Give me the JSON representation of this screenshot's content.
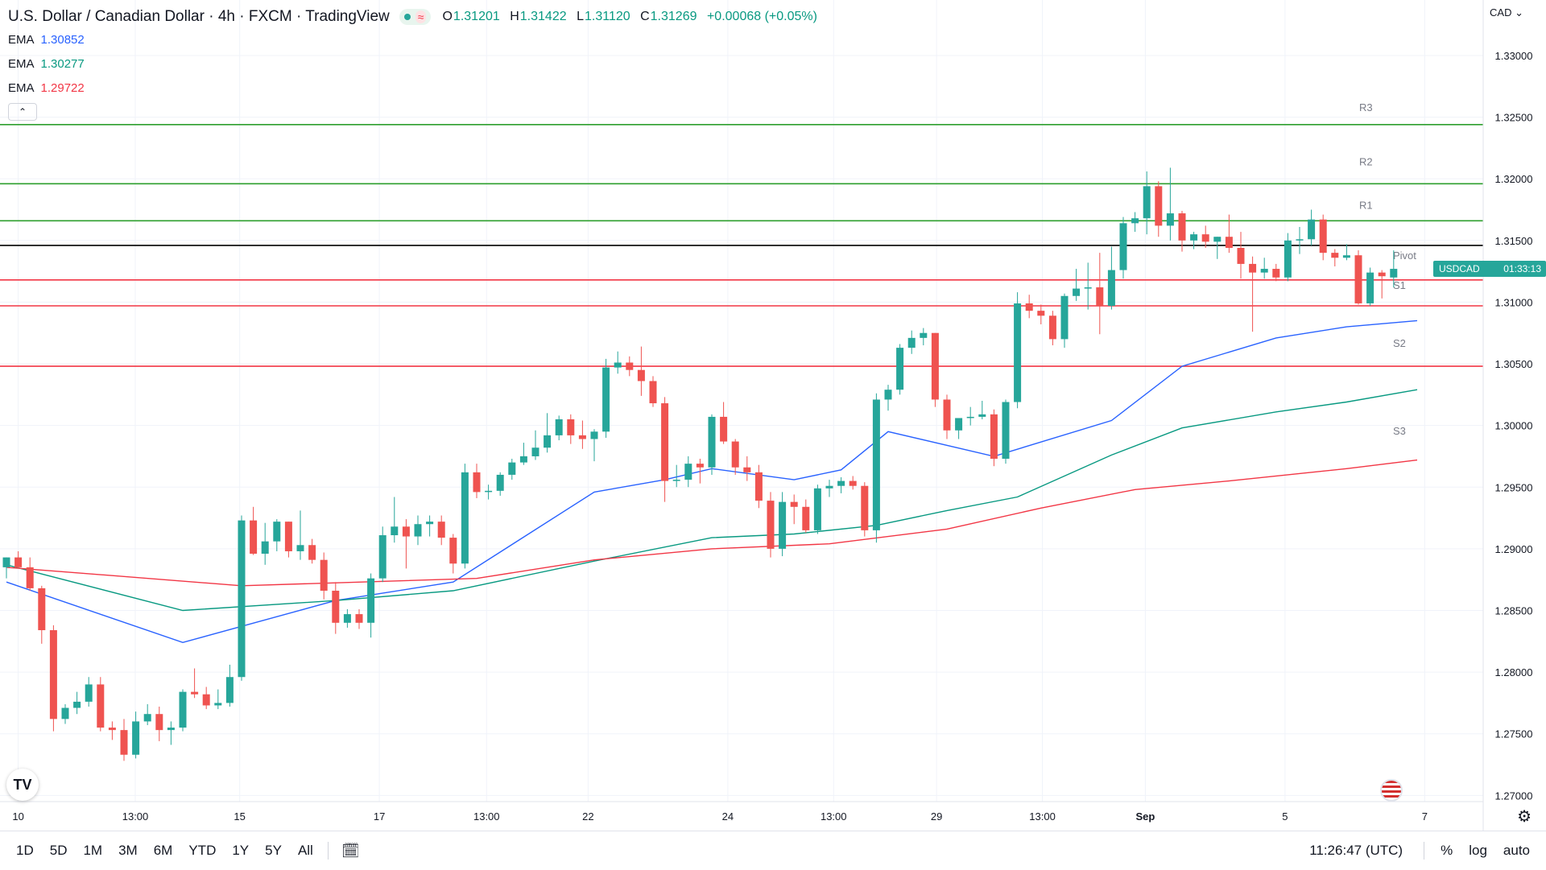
{
  "header": {
    "symbol_title": "U.S. Dollar / Canadian Dollar · 4h · FXCM · TradingView",
    "ohlc": {
      "o_label": "O",
      "o": "1.31201",
      "h_label": "H",
      "h": "1.31422",
      "l_label": "L",
      "l": "1.31120",
      "c_label": "C",
      "c": "1.31269",
      "change": "+0.00068 (+0.05%)"
    }
  },
  "indicators": [
    {
      "label": "EMA",
      "value": "1.30852",
      "color": "#2962ff"
    },
    {
      "label": "EMA",
      "value": "1.30277",
      "color": "#089981"
    },
    {
      "label": "EMA",
      "value": "1.29722",
      "color": "#f23645"
    }
  ],
  "currency_menu": "CAD",
  "collapse_icon": "chevron-up-icon",
  "price_tag": {
    "symbol": "USDCAD",
    "countdown": "01:33:13",
    "color": "#26a69a"
  },
  "bottom_toolbar": {
    "ranges": [
      "1D",
      "5D",
      "1M",
      "3M",
      "6M",
      "YTD",
      "1Y",
      "5Y",
      "All"
    ],
    "clock": "11:26:47 (UTC)",
    "percent": "%",
    "log": "log",
    "auto": "auto"
  },
  "colors": {
    "up": "#26a69a",
    "down": "#ef5350",
    "resistance": "#2e9f2e",
    "support": "#f23645",
    "pivot": "#000000"
  },
  "chart_data": {
    "type": "candlestick",
    "title": "U.S. Dollar / Canadian Dollar · 4h · FXCM · TradingView",
    "ylim": [
      1.2695,
      1.3345
    ],
    "y_ticks": [
      "1.33000",
      "1.32500",
      "1.32000",
      "1.31500",
      "1.31000",
      "1.30500",
      "1.30000",
      "1.29500",
      "1.29000",
      "1.28500",
      "1.28000",
      "1.27500",
      "1.27000"
    ],
    "x_ticks": [
      {
        "label": "10",
        "pos": 0
      },
      {
        "label": "13:00",
        "pos": 8.3
      },
      {
        "label": "15",
        "pos": 15.7
      },
      {
        "label": "17",
        "pos": 25.6
      },
      {
        "label": "13:00",
        "pos": 33.2
      },
      {
        "label": "22",
        "pos": 40.4
      },
      {
        "label": "24",
        "pos": 50.3
      },
      {
        "label": "13:00",
        "pos": 57.8
      },
      {
        "label": "29",
        "pos": 65.1
      },
      {
        "label": "13:00",
        "pos": 72.6
      },
      {
        "label": "Sep",
        "pos": 79.9
      },
      {
        "label": "5",
        "pos": 89.8
      },
      {
        "label": "7",
        "pos": 99.7
      }
    ],
    "levels": [
      {
        "name": "R3",
        "value": 1.3244,
        "kind": "resistance"
      },
      {
        "name": "R2",
        "value": 1.3196,
        "kind": "resistance"
      },
      {
        "name": "R1",
        "value": 1.3166,
        "kind": "resistance"
      },
      {
        "name": "Pivot",
        "value": 1.3146,
        "kind": "pivot"
      },
      {
        "name": "S1",
        "value": 1.3118,
        "kind": "support"
      },
      {
        "name": "S2",
        "value": 1.3097,
        "kind": "support"
      },
      {
        "name": "S3",
        "value": 1.3048,
        "kind": "support"
      }
    ],
    "candles": [
      [
        1.2885,
        1.2893,
        1.2876,
        1.2893
      ],
      [
        1.2893,
        1.2898,
        1.2884,
        1.2885
      ],
      [
        1.2885,
        1.2893,
        1.2866,
        1.2868
      ],
      [
        1.2868,
        1.287,
        1.2823,
        1.2834
      ],
      [
        1.2834,
        1.2838,
        1.2752,
        1.2762
      ],
      [
        1.2762,
        1.2774,
        1.2758,
        1.2771
      ],
      [
        1.2771,
        1.2784,
        1.2766,
        1.2776
      ],
      [
        1.2776,
        1.2796,
        1.2772,
        1.279
      ],
      [
        1.279,
        1.2796,
        1.2752,
        1.2755
      ],
      [
        1.2755,
        1.276,
        1.2745,
        1.2753
      ],
      [
        1.2753,
        1.2762,
        1.2728,
        1.2733
      ],
      [
        1.2733,
        1.2768,
        1.273,
        1.276
      ],
      [
        1.276,
        1.2774,
        1.2757,
        1.2766
      ],
      [
        1.2766,
        1.2772,
        1.2744,
        1.2753
      ],
      [
        1.2753,
        1.276,
        1.2741,
        1.2755
      ],
      [
        1.2755,
        1.2786,
        1.2752,
        1.2784
      ],
      [
        1.2784,
        1.2803,
        1.2779,
        1.2782
      ],
      [
        1.2782,
        1.2788,
        1.277,
        1.2773
      ],
      [
        1.2773,
        1.2786,
        1.277,
        1.2775
      ],
      [
        1.2775,
        1.2806,
        1.2772,
        1.2796
      ],
      [
        1.2796,
        1.2927,
        1.2793,
        1.2923
      ],
      [
        1.2923,
        1.2934,
        1.2895,
        1.2896
      ],
      [
        1.2896,
        1.2921,
        1.2887,
        1.2906
      ],
      [
        1.2906,
        1.2924,
        1.2898,
        1.2922
      ],
      [
        1.2922,
        1.2922,
        1.2893,
        1.2898
      ],
      [
        1.2898,
        1.2931,
        1.2891,
        1.2903
      ],
      [
        1.2903,
        1.2908,
        1.2888,
        1.2891
      ],
      [
        1.2891,
        1.2897,
        1.2859,
        1.2866
      ],
      [
        1.2866,
        1.2873,
        1.2831,
        1.284
      ],
      [
        1.284,
        1.2851,
        1.2836,
        1.2847
      ],
      [
        1.2847,
        1.2851,
        1.2835,
        1.284
      ],
      [
        1.284,
        1.288,
        1.2828,
        1.2876
      ],
      [
        1.2876,
        1.2918,
        1.2873,
        1.2911
      ],
      [
        1.2911,
        1.2942,
        1.2905,
        1.2918
      ],
      [
        1.2918,
        1.2924,
        1.2884,
        1.291
      ],
      [
        1.291,
        1.2927,
        1.2903,
        1.292
      ],
      [
        1.292,
        1.2927,
        1.291,
        1.2922
      ],
      [
        1.2922,
        1.2927,
        1.2903,
        1.2909
      ],
      [
        1.2909,
        1.2912,
        1.288,
        1.2888
      ],
      [
        1.2888,
        1.2969,
        1.2884,
        1.2962
      ],
      [
        1.2962,
        1.2969,
        1.2941,
        1.2946
      ],
      [
        1.2946,
        1.2952,
        1.294,
        1.2947
      ],
      [
        1.2947,
        1.2962,
        1.2943,
        1.296
      ],
      [
        1.296,
        1.2973,
        1.2956,
        1.297
      ],
      [
        1.297,
        1.2986,
        1.2968,
        1.2975
      ],
      [
        1.2975,
        1.2996,
        1.2972,
        1.2982
      ],
      [
        1.2982,
        1.301,
        1.2978,
        1.2992
      ],
      [
        1.2992,
        1.3008,
        1.2988,
        1.3005
      ],
      [
        1.3005,
        1.3009,
        1.2985,
        1.2992
      ],
      [
        1.2992,
        1.3004,
        1.2981,
        1.2989
      ],
      [
        1.2989,
        1.2997,
        1.2971,
        1.2995
      ],
      [
        1.2995,
        1.3054,
        1.299,
        1.3047
      ],
      [
        1.3047,
        1.306,
        1.3042,
        1.3051
      ],
      [
        1.3051,
        1.3056,
        1.304,
        1.3045
      ],
      [
        1.3045,
        1.3064,
        1.3024,
        1.3036
      ],
      [
        1.3036,
        1.304,
        1.3015,
        1.3018
      ],
      [
        1.3018,
        1.3023,
        1.2938,
        1.2955
      ],
      [
        1.2955,
        1.2968,
        1.295,
        1.2956
      ],
      [
        1.2956,
        1.2975,
        1.295,
        1.2969
      ],
      [
        1.2969,
        1.2973,
        1.2953,
        1.2966
      ],
      [
        1.2966,
        1.3009,
        1.296,
        1.3007
      ],
      [
        1.3007,
        1.3019,
        1.2985,
        1.2987
      ],
      [
        1.2987,
        1.2989,
        1.296,
        1.2966
      ],
      [
        1.2966,
        1.2975,
        1.2955,
        1.2962
      ],
      [
        1.2962,
        1.2968,
        1.2933,
        1.2939
      ],
      [
        1.2939,
        1.2946,
        1.2893,
        1.29
      ],
      [
        1.29,
        1.2946,
        1.2894,
        1.2938
      ],
      [
        1.2938,
        1.2944,
        1.292,
        1.2934
      ],
      [
        1.2934,
        1.294,
        1.2913,
        1.2915
      ],
      [
        1.2915,
        1.2952,
        1.2912,
        1.2949
      ],
      [
        1.2949,
        1.2956,
        1.2942,
        1.2951
      ],
      [
        1.2951,
        1.2958,
        1.2945,
        1.2955
      ],
      [
        1.2955,
        1.2959,
        1.2948,
        1.2951
      ],
      [
        1.2951,
        1.2954,
        1.291,
        1.2915
      ],
      [
        1.2915,
        1.3026,
        1.2905,
        1.3021
      ],
      [
        1.3021,
        1.3033,
        1.3012,
        1.3029
      ],
      [
        1.3029,
        1.3066,
        1.3025,
        1.3063
      ],
      [
        1.3063,
        1.3077,
        1.3058,
        1.3071
      ],
      [
        1.3071,
        1.3079,
        1.3065,
        1.3075
      ],
      [
        1.3075,
        1.3075,
        1.3015,
        1.3021
      ],
      [
        1.3021,
        1.3025,
        1.2989,
        1.2996
      ],
      [
        1.2996,
        1.3003,
        1.2989,
        1.3006
      ],
      [
        1.3006,
        1.3015,
        1.3,
        1.3007
      ],
      [
        1.3007,
        1.302,
        1.3005,
        1.3009
      ],
      [
        1.3009,
        1.3013,
        1.2967,
        1.2973
      ],
      [
        1.2973,
        1.3021,
        1.2969,
        1.3019
      ],
      [
        1.3019,
        1.3108,
        1.3014,
        1.3099
      ],
      [
        1.3099,
        1.3106,
        1.3087,
        1.3093
      ],
      [
        1.3093,
        1.3098,
        1.3082,
        1.3089
      ],
      [
        1.3089,
        1.3093,
        1.3065,
        1.307
      ],
      [
        1.307,
        1.3107,
        1.3063,
        1.3105
      ],
      [
        1.3105,
        1.3127,
        1.3101,
        1.3111
      ],
      [
        1.3111,
        1.3132,
        1.3094,
        1.3112
      ],
      [
        1.3112,
        1.314,
        1.3074,
        1.3097
      ],
      [
        1.3097,
        1.3145,
        1.3094,
        1.3126
      ],
      [
        1.3126,
        1.3169,
        1.3119,
        1.3164
      ],
      [
        1.3164,
        1.3173,
        1.3157,
        1.3168
      ],
      [
        1.3168,
        1.3206,
        1.3155,
        1.3194
      ],
      [
        1.3194,
        1.3198,
        1.3153,
        1.3162
      ],
      [
        1.3162,
        1.3209,
        1.315,
        1.3172
      ],
      [
        1.3172,
        1.3174,
        1.3141,
        1.315
      ],
      [
        1.315,
        1.3157,
        1.3143,
        1.3155
      ],
      [
        1.3155,
        1.3162,
        1.3144,
        1.3149
      ],
      [
        1.3149,
        1.3153,
        1.3135,
        1.3153
      ],
      [
        1.3153,
        1.3171,
        1.314,
        1.3144
      ],
      [
        1.3144,
        1.3157,
        1.3119,
        1.3131
      ],
      [
        1.3131,
        1.3137,
        1.3076,
        1.3124
      ],
      [
        1.3124,
        1.3136,
        1.3119,
        1.3127
      ],
      [
        1.3127,
        1.3131,
        1.3117,
        1.312
      ],
      [
        1.312,
        1.3156,
        1.3117,
        1.315
      ],
      [
        1.315,
        1.3161,
        1.3139,
        1.3151
      ],
      [
        1.3151,
        1.3175,
        1.3146,
        1.3167
      ],
      [
        1.3167,
        1.3171,
        1.3134,
        1.314
      ],
      [
        1.314,
        1.3143,
        1.3129,
        1.3136
      ],
      [
        1.3136,
        1.3147,
        1.3134,
        1.3138
      ],
      [
        1.3138,
        1.3142,
        1.3098,
        1.3099
      ],
      [
        1.3099,
        1.3128,
        1.3097,
        1.3124
      ],
      [
        1.3124,
        1.3126,
        1.3103,
        1.3121
      ],
      [
        1.312,
        1.3142,
        1.3112,
        1.3127
      ]
    ],
    "series": [
      {
        "name": "EMA 1.30852",
        "color": "#2962ff",
        "anchors": [
          [
            0,
            1.2873
          ],
          [
            15,
            1.2824
          ],
          [
            28,
            1.2858
          ],
          [
            38,
            1.2873
          ],
          [
            50,
            1.2946
          ],
          [
            56,
            1.2956
          ],
          [
            60,
            1.2965
          ],
          [
            67,
            1.2956
          ],
          [
            71,
            1.2964
          ],
          [
            75,
            1.2995
          ],
          [
            84,
            1.2975
          ],
          [
            94,
            1.3004
          ],
          [
            100,
            1.3048
          ],
          [
            108,
            1.3071
          ],
          [
            114,
            1.308
          ],
          [
            120,
            1.3085
          ]
        ]
      },
      {
        "name": "EMA 1.30277",
        "color": "#089981",
        "anchors": [
          [
            0,
            1.2887
          ],
          [
            15,
            1.285
          ],
          [
            28,
            1.2858
          ],
          [
            38,
            1.2866
          ],
          [
            50,
            1.289
          ],
          [
            60,
            1.2909
          ],
          [
            67,
            1.2912
          ],
          [
            74,
            1.2919
          ],
          [
            80,
            1.2931
          ],
          [
            86,
            1.2942
          ],
          [
            94,
            1.2976
          ],
          [
            100,
            1.2998
          ],
          [
            108,
            1.3011
          ],
          [
            114,
            1.3019
          ],
          [
            120,
            1.3029
          ]
        ]
      },
      {
        "name": "EMA 1.29722",
        "color": "#f23645",
        "anchors": [
          [
            0,
            1.2885
          ],
          [
            20,
            1.287
          ],
          [
            40,
            1.2876
          ],
          [
            50,
            1.2891
          ],
          [
            60,
            1.29
          ],
          [
            70,
            1.2904
          ],
          [
            80,
            1.2916
          ],
          [
            88,
            1.2933
          ],
          [
            96,
            1.2948
          ],
          [
            104,
            1.2955
          ],
          [
            114,
            1.2965
          ],
          [
            120,
            1.2972
          ]
        ]
      }
    ]
  }
}
